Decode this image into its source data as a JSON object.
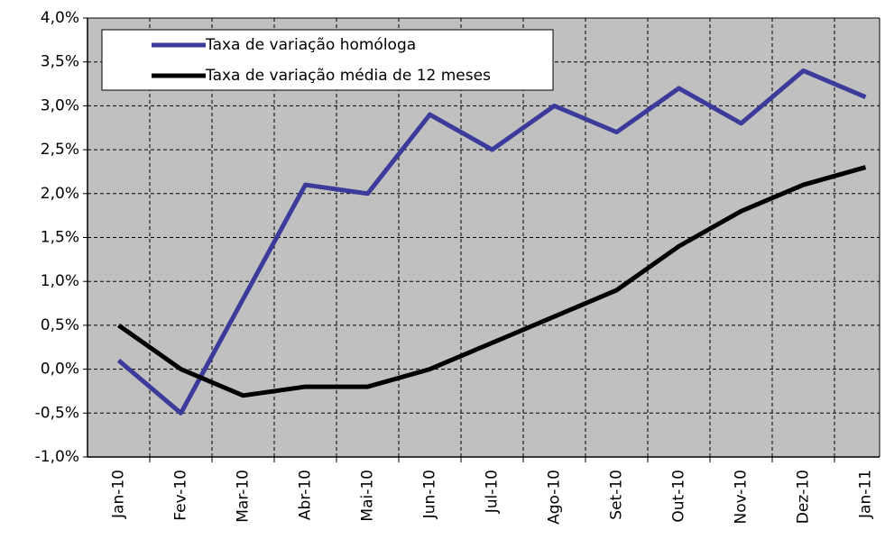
{
  "chart_data": {
    "type": "line",
    "categories": [
      "Jan-10",
      "Fev-10",
      "Mar-10",
      "Abr-10",
      "Mai-10",
      "Jun-10",
      "Jul-10",
      "Ago-10",
      "Set-10",
      "Out-10",
      "Nov-10",
      "Dez-10",
      "Jan-11"
    ],
    "series": [
      {
        "name": "Taxa de variação homóloga",
        "color": "#3b3b9b",
        "values": [
          0.1,
          -0.5,
          0.8,
          2.1,
          2.0,
          2.9,
          2.5,
          3.0,
          2.7,
          3.2,
          2.8,
          3.4,
          3.1
        ]
      },
      {
        "name": "Taxa de variação média de 12 meses",
        "color": "#000000",
        "values": [
          0.5,
          0.0,
          -0.3,
          -0.2,
          -0.2,
          0.0,
          0.3,
          0.6,
          0.9,
          1.4,
          1.8,
          2.1,
          2.3
        ]
      }
    ],
    "ylim": [
      -1.0,
      4.0
    ],
    "yticks": [
      {
        "value": -1.0,
        "label": "-1,0%"
      },
      {
        "value": -0.5,
        "label": "-0,5%"
      },
      {
        "value": 0.0,
        "label": "0,0%"
      },
      {
        "value": 0.5,
        "label": "0,5%"
      },
      {
        "value": 1.0,
        "label": "1,0%"
      },
      {
        "value": 1.5,
        "label": "1,5%"
      },
      {
        "value": 2.0,
        "label": "2,0%"
      },
      {
        "value": 2.5,
        "label": "2,5%"
      },
      {
        "value": 3.0,
        "label": "3,0%"
      },
      {
        "value": 3.5,
        "label": "3,5%"
      },
      {
        "value": 4.0,
        "label": "4,0%"
      }
    ],
    "grid": true,
    "legend": "upper left"
  }
}
